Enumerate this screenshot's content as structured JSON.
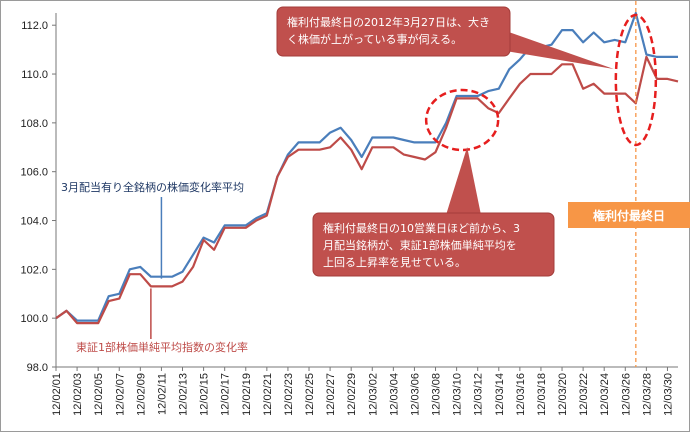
{
  "chart_data": {
    "type": "line",
    "title": "",
    "xlabel": "",
    "ylabel": "",
    "ylim": [
      98.0,
      112.5
    ],
    "yticks": [
      "98.0",
      "100.0",
      "102.0",
      "104.0",
      "106.0",
      "108.0",
      "110.0",
      "112.0"
    ],
    "ytick_values": [
      98,
      100,
      102,
      104,
      106,
      108,
      110,
      112
    ],
    "grid": false,
    "x": [
      "12/02/01",
      "12/02/02",
      "12/02/03",
      "12/02/04",
      "12/02/05",
      "12/02/06",
      "12/02/07",
      "12/02/08",
      "12/02/09",
      "12/02/10",
      "12/02/11",
      "12/02/12",
      "12/02/13",
      "12/02/14",
      "12/02/15",
      "12/02/16",
      "12/02/17",
      "12/02/18",
      "12/02/19",
      "12/02/20",
      "12/02/21",
      "12/02/22",
      "12/02/23",
      "12/02/24",
      "12/02/25",
      "12/02/26",
      "12/02/27",
      "12/02/28",
      "12/02/29",
      "12/03/01",
      "12/03/02",
      "12/03/03",
      "12/03/04",
      "12/03/05",
      "12/03/06",
      "12/03/07",
      "12/03/08",
      "12/03/09",
      "12/03/10",
      "12/03/11",
      "12/03/12",
      "12/03/13",
      "12/03/14",
      "12/03/15",
      "12/03/16",
      "12/03/17",
      "12/03/18",
      "12/03/19",
      "12/03/20",
      "12/03/21",
      "12/03/22",
      "12/03/23",
      "12/03/24",
      "12/03/25",
      "12/03/26",
      "12/03/27",
      "12/03/28",
      "12/03/29",
      "12/03/30",
      "12/03/31"
    ],
    "xtick_labels": [
      "12/02/01",
      "12/02/03",
      "12/02/05",
      "12/02/07",
      "12/02/09",
      "12/02/11",
      "12/02/13",
      "12/02/15",
      "12/02/17",
      "12/02/19",
      "12/02/21",
      "12/02/23",
      "12/02/25",
      "12/02/27",
      "12/02/29",
      "12/03/02",
      "12/03/04",
      "12/03/06",
      "12/03/08",
      "12/03/10",
      "12/03/12",
      "12/03/14",
      "12/03/16",
      "12/03/18",
      "12/03/20",
      "12/03/22",
      "12/03/24",
      "12/03/26",
      "12/03/28",
      "12/03/30"
    ],
    "series": [
      {
        "name": "3月配当有り全銘柄の株価変化率平均",
        "color": "#4a7ebb",
        "values": [
          100.0,
          100.3,
          99.9,
          99.9,
          99.9,
          100.9,
          101.0,
          102.0,
          102.1,
          101.7,
          101.7,
          101.7,
          101.9,
          102.6,
          103.3,
          103.1,
          103.8,
          103.8,
          103.8,
          104.1,
          104.3,
          105.8,
          106.7,
          107.2,
          107.2,
          107.2,
          107.6,
          107.8,
          107.3,
          106.6,
          107.4,
          107.4,
          107.4,
          107.3,
          107.2,
          107.2,
          107.2,
          108.0,
          109.1,
          109.1,
          109.1,
          109.3,
          109.4,
          110.2,
          110.6,
          111.1,
          111.1,
          111.2,
          111.8,
          111.8,
          111.3,
          111.7,
          111.3,
          111.4,
          111.3,
          112.5,
          110.8,
          110.7,
          110.7,
          110.7
        ]
      },
      {
        "name": "東証1部株価単純平均指数の変化率",
        "color": "#be4b48",
        "values": [
          100.0,
          100.3,
          99.8,
          99.8,
          99.8,
          100.7,
          100.8,
          101.8,
          101.8,
          101.3,
          101.3,
          101.3,
          101.5,
          102.1,
          103.2,
          102.8,
          103.7,
          103.7,
          103.7,
          104.0,
          104.2,
          105.8,
          106.6,
          106.9,
          106.9,
          106.9,
          107.0,
          107.4,
          106.9,
          106.1,
          107.0,
          107.0,
          107.0,
          106.7,
          106.6,
          106.5,
          106.8,
          107.8,
          109.0,
          109.0,
          109.0,
          108.6,
          108.4,
          109.0,
          109.6,
          110.0,
          110.0,
          110.0,
          110.4,
          110.4,
          109.4,
          109.6,
          109.2,
          109.2,
          109.2,
          108.8,
          110.7,
          109.8,
          109.8,
          109.7
        ]
      }
    ],
    "annotations": [
      {
        "name": "callout-top",
        "lines": [
          "権利付最終日の2012年3月27日は、大き",
          "く株価が上がっている事が伺える。"
        ]
      },
      {
        "name": "callout-mid",
        "lines": [
          "権利付最終日の10営業日ほど前から、3",
          "月配当銘柄が、東証1部株価単純平均を",
          "上回る上昇率を見せている。"
        ]
      },
      {
        "name": "badge",
        "text": "権利付最終日"
      }
    ],
    "colors": {
      "callout_fill": "#c0504d",
      "badge_fill": "#f79646",
      "marker_line": "#f79646",
      "ellipse": "#e61e1e"
    }
  }
}
